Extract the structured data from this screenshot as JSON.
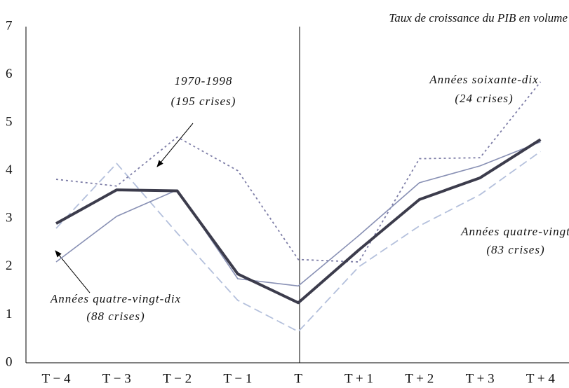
{
  "chart_data": {
    "type": "line",
    "title": "Taux de croissance du PIB en volume",
    "categories": [
      "T − 4",
      "T − 3",
      "T − 2",
      "T − 1",
      "T",
      "T + 1",
      "T + 2",
      "T + 3",
      "T + 4"
    ],
    "ylim": [
      0,
      7
    ],
    "yticks": [
      0,
      1,
      2,
      3,
      4,
      5,
      6,
      7
    ],
    "grid": false,
    "series": [
      {
        "name": "Années quatre-vingt",
        "note": "(83 crises)",
        "color": "#b4c0dc",
        "style": "dashed",
        "width": 1.8,
        "values": [
          2.8,
          4.15,
          2.7,
          1.3,
          0.65,
          2.0,
          2.85,
          3.5,
          4.4
        ]
      },
      {
        "name": "Années soixante-dix",
        "note": "(24 crises)",
        "color": "#7c7ca6",
        "style": "dotted",
        "width": 1.8,
        "values": [
          3.82,
          3.68,
          4.7,
          4.0,
          2.15,
          2.1,
          4.25,
          4.27,
          5.85
        ]
      },
      {
        "name": "Années quatre-vingt-dix",
        "note": "(88 crises)",
        "color": "#8890b4",
        "style": "solid",
        "width": 1.6,
        "values": [
          2.1,
          3.05,
          3.6,
          1.75,
          1.6,
          2.65,
          3.75,
          4.1,
          4.6
        ]
      },
      {
        "name": "1970-1998",
        "note": "(195 crises)",
        "color": "#3c3c4c",
        "style": "solid",
        "width": 4,
        "values": [
          2.9,
          3.6,
          3.58,
          1.85,
          1.25,
          2.35,
          3.4,
          3.85,
          4.65
        ]
      }
    ]
  }
}
